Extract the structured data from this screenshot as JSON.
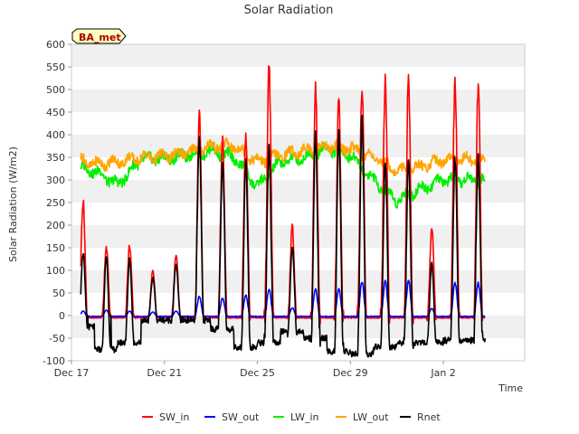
{
  "chart_data": {
    "type": "line",
    "title": "Solar Radiation",
    "xlabel": "Time",
    "ylabel": "Solar Radiation (W/m2)",
    "site_label": "BA_met",
    "ylim": [
      -100,
      600
    ],
    "yticks": [
      -100,
      -50,
      0,
      50,
      100,
      150,
      200,
      250,
      300,
      350,
      400,
      450,
      500,
      550,
      600
    ],
    "xlim": [
      0,
      19.5
    ],
    "x_unit": "days since Dec 17",
    "xticks": [
      {
        "x": 0,
        "label": "Dec 17"
      },
      {
        "x": 4,
        "label": "Dec 21"
      },
      {
        "x": 8,
        "label": "Dec 25"
      },
      {
        "x": 12,
        "label": "Dec 29"
      },
      {
        "x": 16,
        "label": "Jan 2"
      }
    ],
    "data_range": [
      0.4,
      17.8
    ],
    "grid": "horizontal bands",
    "legend_position": "bottom",
    "series": [
      {
        "name": "SW_in",
        "color": "#ff0000",
        "night": -5,
        "daily_peaks": [
          252,
          152,
          155,
          100,
          135,
          445,
          390,
          405,
          552,
          195,
          500,
          475,
          510,
          522,
          520,
          192,
          508
        ]
      },
      {
        "name": "SW_out",
        "color": "#0000ff",
        "night": -2,
        "daily_peaks": [
          10,
          12,
          10,
          8,
          10,
          42,
          38,
          45,
          58,
          17,
          58,
          58,
          75,
          75,
          75,
          16,
          72
        ]
      },
      {
        "name": "LW_in",
        "color": "#00ee00",
        "daily_levels": [
          330,
          320,
          290,
          345,
          348,
          355,
          365,
          350,
          285,
          340,
          350,
          370,
          355,
          300,
          255,
          280,
          300
        ]
      },
      {
        "name": "LW_out",
        "color": "#ffa500",
        "daily_levels": [
          350,
          335,
          340,
          350,
          352,
          362,
          375,
          375,
          340,
          355,
          365,
          375,
          370,
          350,
          320,
          330,
          345
        ]
      },
      {
        "name": "Rnet",
        "color": "#000000",
        "night": -45,
        "daily_peaks": [
          140,
          130,
          125,
          85,
          115,
          385,
          330,
          340,
          375,
          150,
          395,
          400,
          435,
          335,
          340,
          115,
          350
        ],
        "night_lows": [
          -25,
          -75,
          -60,
          -10,
          -10,
          -10,
          -30,
          -70,
          -60,
          -35,
          -50,
          -80,
          -85,
          -70,
          -60,
          -60,
          -55
        ]
      }
    ]
  }
}
